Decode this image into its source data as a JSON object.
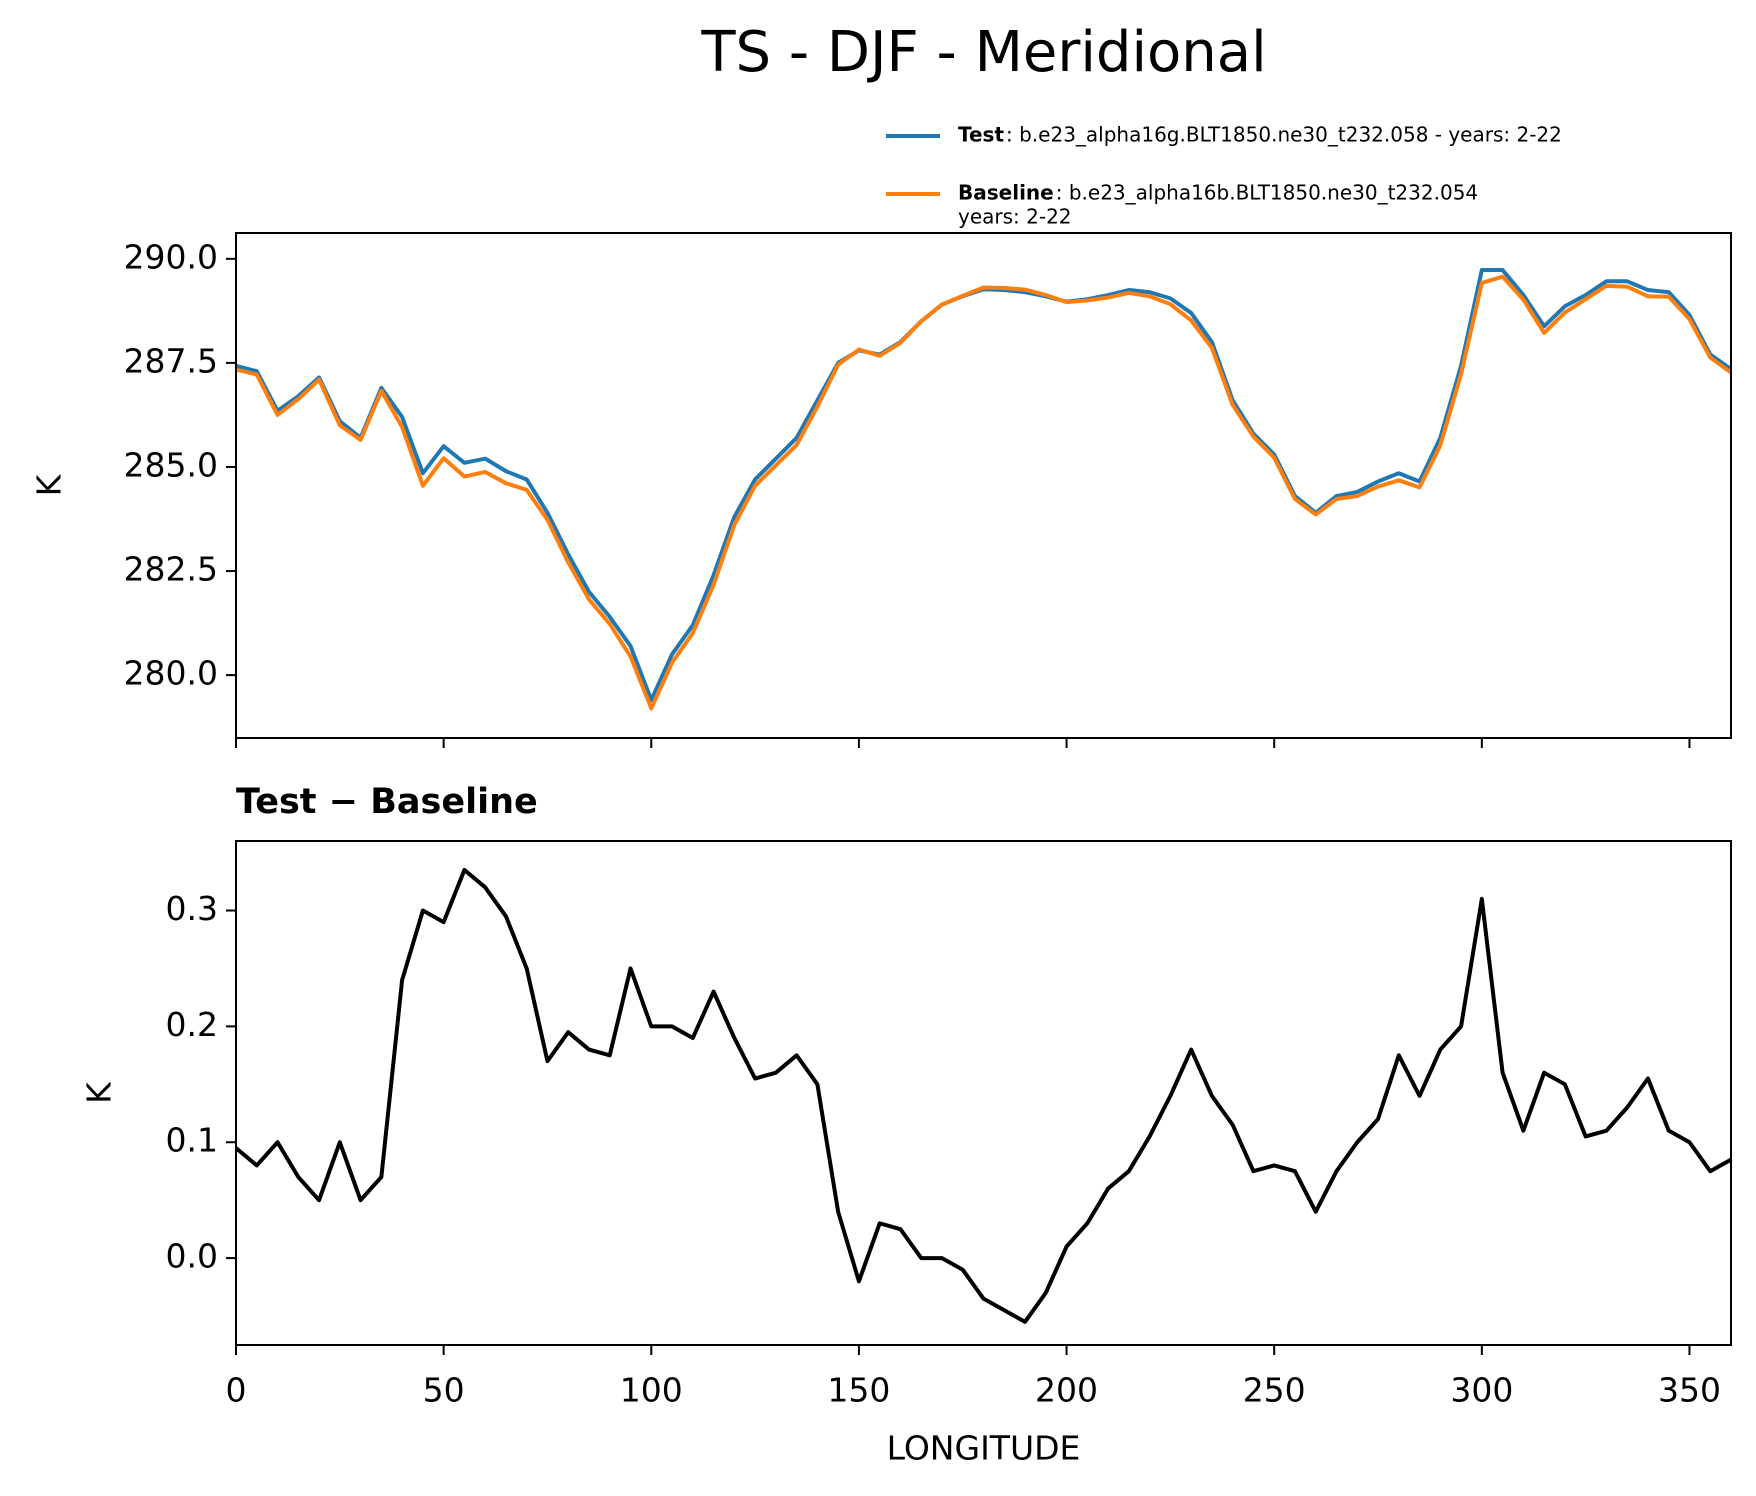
{
  "title": "TS - DJF - Meridional",
  "chart_data": [
    {
      "type": "line",
      "ylabel": "K",
      "xlim": [
        0,
        360
      ],
      "ylim": [
        278.49,
        290.62
      ],
      "yticks": [
        {
          "value": 280,
          "label": "280.0"
        },
        282.5,
        {
          "value": 285,
          "label": "285.0"
        },
        287.5,
        {
          "value": 290,
          "label": "290.0"
        }
      ],
      "x": [
        0,
        5,
        10,
        15,
        20,
        25,
        30,
        35,
        40,
        45,
        50,
        55,
        60,
        65,
        70,
        75,
        80,
        85,
        90,
        95,
        100,
        105,
        110,
        115,
        120,
        125,
        130,
        135,
        140,
        145,
        150,
        155,
        160,
        165,
        170,
        175,
        180,
        185,
        190,
        195,
        200,
        205,
        210,
        215,
        220,
        225,
        230,
        235,
        240,
        245,
        250,
        255,
        260,
        265,
        270,
        275,
        280,
        285,
        290,
        295,
        300,
        305,
        310,
        315,
        320,
        325,
        330,
        335,
        340,
        345,
        350,
        355,
        360
      ],
      "legend": "upper right",
      "series": [
        {
          "name": "Test",
          "label": ": b.e23_alpha16g.BLT1850.ne30_t232.058 - years: 2-22",
          "color": "#1f77b4",
          "values": [
            287.43,
            287.3,
            286.35,
            286.7,
            287.15,
            286.1,
            285.7,
            286.9,
            286.2,
            284.85,
            285.5,
            285.1,
            285.2,
            284.9,
            284.7,
            283.9,
            282.9,
            282.0,
            281.4,
            280.7,
            279.4,
            280.5,
            281.2,
            282.4,
            283.8,
            284.7,
            285.2,
            285.7,
            286.6,
            287.5,
            287.8,
            287.7,
            288.0,
            288.5,
            288.9,
            289.1,
            289.27,
            289.25,
            289.2,
            289.1,
            288.97,
            289.03,
            289.13,
            289.25,
            289.2,
            289.05,
            288.7,
            288.0,
            286.6,
            285.8,
            285.3,
            284.3,
            283.9,
            284.3,
            284.4,
            284.65,
            284.85,
            284.65,
            285.7,
            287.43,
            289.73,
            289.73,
            289.13,
            288.38,
            288.86,
            289.13,
            289.46,
            289.46,
            289.25,
            289.2,
            288.65,
            287.7,
            287.35
          ]
        },
        {
          "name": "Baseline",
          "label": [
            ": b.e23_alpha16b.BLT1850.ne30_t232.054",
            "years: 2-22"
          ],
          "color": "#ff7f0e",
          "values": [
            287.34,
            287.22,
            286.25,
            286.63,
            287.1,
            286.0,
            285.65,
            286.83,
            285.96,
            284.55,
            285.21,
            284.77,
            284.88,
            284.61,
            284.45,
            283.73,
            282.71,
            281.82,
            281.23,
            280.45,
            279.2,
            280.3,
            281.01,
            282.17,
            283.61,
            284.55,
            285.04,
            285.53,
            286.45,
            287.46,
            287.82,
            287.67,
            287.98,
            288.5,
            288.9,
            289.11,
            289.31,
            289.3,
            289.26,
            289.13,
            288.96,
            289.0,
            289.07,
            289.18,
            289.1,
            288.91,
            288.52,
            287.86,
            286.49,
            285.73,
            285.22,
            284.23,
            283.86,
            284.23,
            284.3,
            284.53,
            284.68,
            284.51,
            285.52,
            287.23,
            289.42,
            289.57,
            289.02,
            288.22,
            288.71,
            289.03,
            289.35,
            289.33,
            289.1,
            289.09,
            288.55,
            287.63,
            287.27
          ]
        }
      ]
    },
    {
      "type": "line",
      "title": "Test − Baseline",
      "xlabel": "LONGITUDE",
      "ylabel": "K",
      "color": "#000000",
      "xlim": [
        0,
        360
      ],
      "xticks": [
        0,
        50,
        100,
        150,
        200,
        250,
        300,
        350
      ],
      "ylim": [
        -0.075,
        0.36
      ],
      "yticks": [
        {
          "value": 0,
          "label": "0.0"
        },
        0.1,
        0.2,
        0.3
      ],
      "x": [
        0,
        5,
        10,
        15,
        20,
        25,
        30,
        35,
        40,
        45,
        50,
        55,
        60,
        65,
        70,
        75,
        80,
        85,
        90,
        95,
        100,
        105,
        110,
        115,
        120,
        125,
        130,
        135,
        140,
        145,
        150,
        155,
        160,
        165,
        170,
        175,
        180,
        185,
        190,
        195,
        200,
        205,
        210,
        215,
        220,
        225,
        230,
        235,
        240,
        245,
        250,
        255,
        260,
        265,
        270,
        275,
        280,
        285,
        290,
        295,
        300,
        305,
        310,
        315,
        320,
        325,
        330,
        335,
        340,
        345,
        350,
        355,
        360
      ],
      "values": [
        0.095,
        0.08,
        0.1,
        0.07,
        0.05,
        0.1,
        0.05,
        0.07,
        0.24,
        0.3,
        0.29,
        0.335,
        0.32,
        0.295,
        0.25,
        0.17,
        0.195,
        0.18,
        0.175,
        0.25,
        0.2,
        0.2,
        0.19,
        0.23,
        0.19,
        0.155,
        0.16,
        0.175,
        0.15,
        0.04,
        -0.02,
        0.03,
        0.025,
        0.0,
        0.0,
        -0.01,
        -0.035,
        -0.045,
        -0.055,
        -0.03,
        0.01,
        0.03,
        0.06,
        0.075,
        0.105,
        0.14,
        0.18,
        0.14,
        0.115,
        0.075,
        0.08,
        0.075,
        0.04,
        0.075,
        0.1,
        0.12,
        0.175,
        0.14,
        0.18,
        0.2,
        0.31,
        0.16,
        0.11,
        0.16,
        0.15,
        0.105,
        0.11,
        0.13,
        0.155,
        0.11,
        0.1,
        0.075,
        0.085
      ]
    }
  ]
}
